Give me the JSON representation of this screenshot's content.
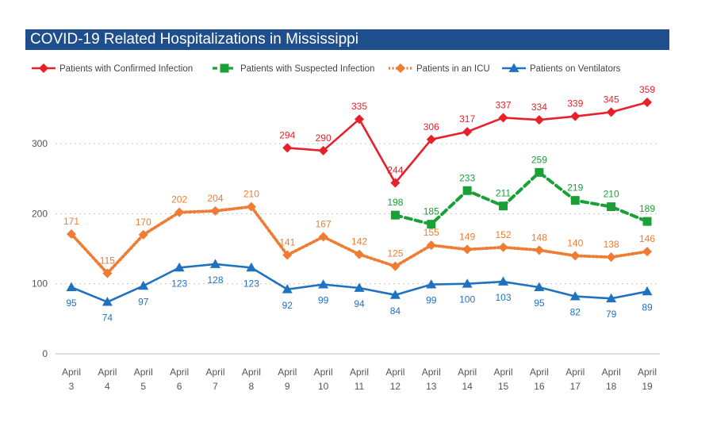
{
  "chart_data": {
    "type": "line",
    "title": "COVID-19 Related Hospitalizations in Mississippi",
    "categories": [
      [
        "April",
        "3"
      ],
      [
        "April",
        "4"
      ],
      [
        "April",
        "5"
      ],
      [
        "April",
        "6"
      ],
      [
        "April",
        "7"
      ],
      [
        "April",
        "8"
      ],
      [
        "April",
        "9"
      ],
      [
        "April",
        "10"
      ],
      [
        "April",
        "11"
      ],
      [
        "April",
        "12"
      ],
      [
        "April",
        "13"
      ],
      [
        "April",
        "14"
      ],
      [
        "April",
        "15"
      ],
      [
        "April",
        "16"
      ],
      [
        "April",
        "17"
      ],
      [
        "April",
        "18"
      ],
      [
        "April",
        "19"
      ]
    ],
    "ylim": [
      0,
      380
    ],
    "yticks": [
      "0",
      "100",
      "200",
      "300"
    ],
    "grid": true,
    "legend": "top",
    "series": [
      {
        "name": "Patients with Confirmed Infection",
        "color": "#e8202a",
        "marker": "diamond",
        "dash": "solid",
        "values": [
          null,
          null,
          null,
          null,
          null,
          null,
          294,
          290,
          335,
          244,
          306,
          317,
          337,
          334,
          339,
          345,
          359
        ]
      },
      {
        "name": "Patients with Suspected Infection",
        "color": "#1aa037",
        "marker": "square",
        "dash": "dashed",
        "values": [
          null,
          null,
          null,
          null,
          null,
          null,
          null,
          null,
          null,
          198,
          185,
          233,
          211,
          259,
          219,
          210,
          189
        ]
      },
      {
        "name": "Patients in an ICU",
        "color": "#f07b32",
        "marker": "diamond",
        "dash": "dotted",
        "values": [
          171,
          115,
          170,
          202,
          204,
          210,
          141,
          167,
          142,
          125,
          155,
          149,
          152,
          148,
          140,
          138,
          146
        ]
      },
      {
        "name": "Patients on Ventilators",
        "color": "#2072c0",
        "marker": "triangle",
        "dash": "solid",
        "values": [
          95,
          74,
          97,
          123,
          128,
          123,
          92,
          99,
          94,
          84,
          99,
          100,
          103,
          95,
          82,
          79,
          89
        ]
      }
    ]
  }
}
